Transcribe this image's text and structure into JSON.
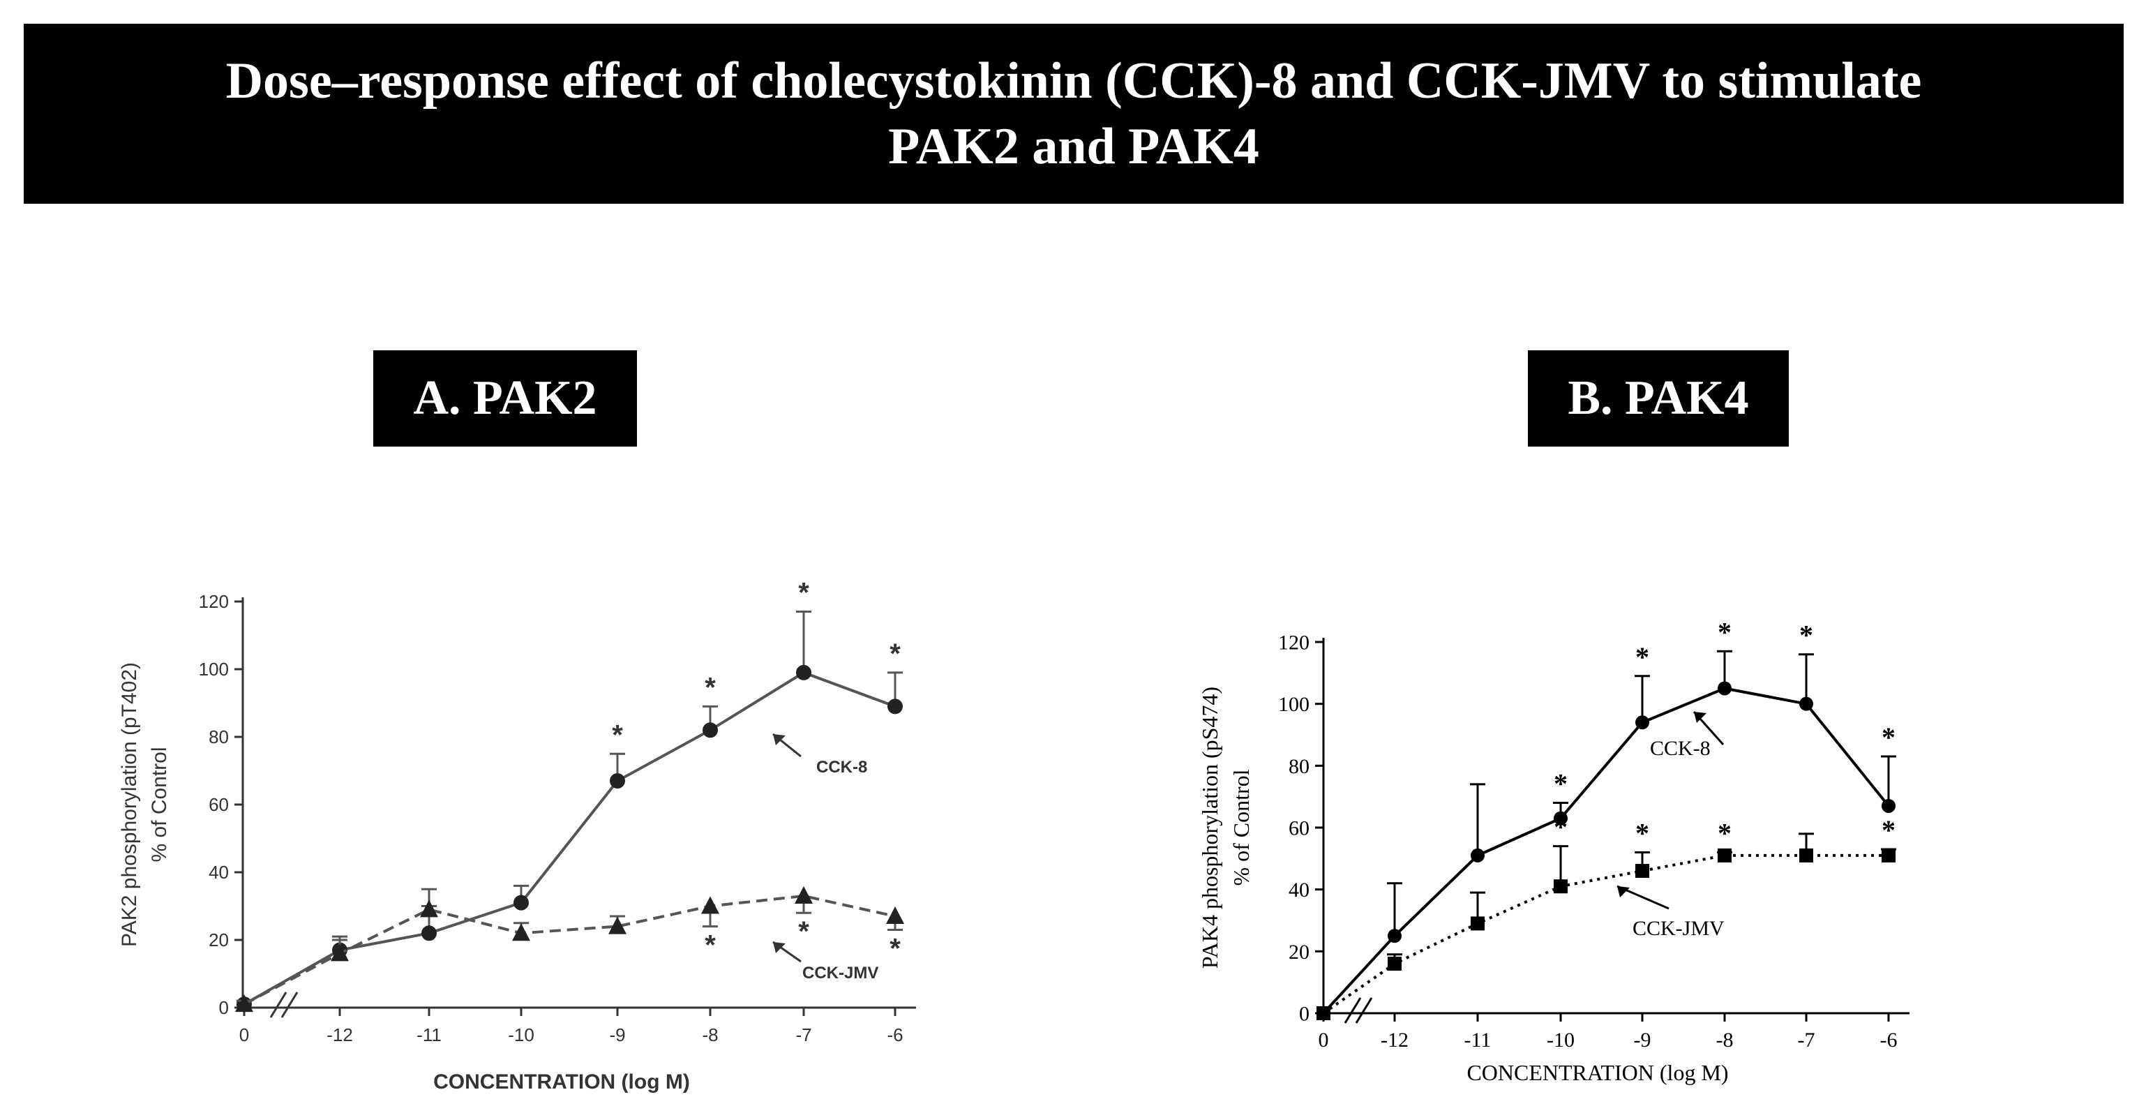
{
  "title": {
    "line1": "Dose–response effect of cholecystokinin (CCK)-8 and CCK-JMV to stimulate",
    "line2": "PAK2 and PAK4"
  },
  "panels": {
    "a": {
      "label": "A. PAK2"
    },
    "b": {
      "label": "B. PAK4"
    }
  },
  "colors": {
    "banner": "#000000",
    "banner_text": "#ffffff",
    "line_a": "#555555",
    "line_b": "#000000"
  },
  "chart_data": [
    {
      "type": "line",
      "title": "A. PAK2",
      "xlabel": "CONCENTRATION (log M)",
      "ylabel_line1": "PAK2 phosphorylation (pT402)",
      "ylabel_line2": "% of Control",
      "categories": [
        "0",
        "-12",
        "-11",
        "-10",
        "-9",
        "-8",
        "-7",
        "-6"
      ],
      "yticks": [
        "0",
        "20",
        "40",
        "60",
        "80",
        "100",
        "120"
      ],
      "ylim": [
        0,
        120
      ],
      "series": [
        {
          "name": "CCK-8",
          "marker": "circle",
          "style": "solid",
          "values": [
            1,
            17,
            22,
            31,
            67,
            82,
            99,
            89
          ],
          "errors": [
            1,
            4,
            8,
            5,
            8,
            7,
            18,
            10
          ],
          "significant": [
            false,
            false,
            false,
            false,
            true,
            true,
            true,
            true
          ]
        },
        {
          "name": "CCK-JMV",
          "marker": "triangle",
          "style": "dashed",
          "values": [
            1,
            16,
            29,
            22,
            24,
            30,
            33,
            27
          ],
          "errors": [
            1,
            4,
            6,
            3,
            3,
            6,
            5,
            4
          ],
          "significant": [
            false,
            false,
            false,
            false,
            false,
            true,
            true,
            true
          ]
        }
      ],
      "annotations": {
        "cck8": "CCK-8",
        "jmv": "CCK-JMV",
        "star": "*"
      }
    },
    {
      "type": "line",
      "title": "B. PAK4",
      "xlabel": "CONCENTRATION (log M)",
      "ylabel_line1": "PAK4 phosphorylation (pS474)",
      "ylabel_line2": "% of Control",
      "categories": [
        "0",
        "-12",
        "-11",
        "-10",
        "-9",
        "-8",
        "-7",
        "-6"
      ],
      "yticks": [
        "0",
        "20",
        "40",
        "60",
        "80",
        "100",
        "120"
      ],
      "ylim": [
        0,
        120
      ],
      "series": [
        {
          "name": "CCK-8",
          "marker": "circle",
          "style": "solid",
          "values": [
            0,
            25,
            51,
            63,
            94,
            105,
            100,
            67
          ],
          "errors": [
            0,
            17,
            23,
            5,
            15,
            12,
            16,
            16
          ],
          "significant": [
            false,
            false,
            false,
            true,
            true,
            true,
            true,
            true
          ]
        },
        {
          "name": "CCK-JMV",
          "marker": "square",
          "style": "dotted",
          "values": [
            0,
            16,
            29,
            41,
            46,
            51,
            51,
            51
          ],
          "errors": [
            0,
            3,
            10,
            13,
            6,
            1,
            7,
            2
          ],
          "significant": [
            false,
            false,
            false,
            true,
            true,
            true,
            false,
            true
          ]
        }
      ],
      "annotations": {
        "cck8": "CCK-8",
        "jmv": "CCK-JMV",
        "star": "*"
      }
    }
  ]
}
